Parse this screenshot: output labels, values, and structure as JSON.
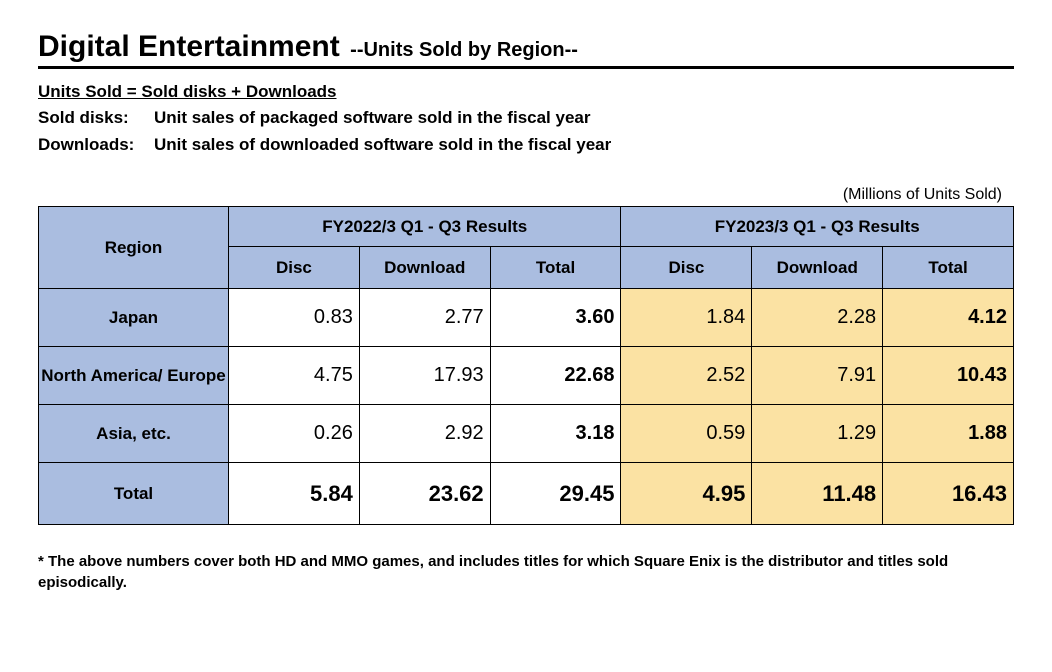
{
  "title": {
    "main": "Digital Entertainment",
    "sub": "--Units Sold by Region--"
  },
  "definitions": {
    "heading": "Units Sold = Sold disks + Downloads",
    "sold_disks_label": "Sold disks:",
    "sold_disks_text": "Unit sales of packaged software sold in the fiscal year",
    "downloads_label": "Downloads:",
    "downloads_text": "Unit sales of downloaded software sold in the fiscal year"
  },
  "unit_note": "(Millions of Units Sold)",
  "table": {
    "region_header": "Region",
    "period_a": "FY2022/3 Q1 - Q3 Results",
    "period_b": "FY2023/3 Q1 - Q3 Results",
    "sub_disc": "Disc",
    "sub_download": "Download",
    "sub_total": "Total",
    "rows": [
      {
        "label": "Japan",
        "a_disc": "0.83",
        "a_dl": "2.77",
        "a_tot": "3.60",
        "b_disc": "1.84",
        "b_dl": "2.28",
        "b_tot": "4.12"
      },
      {
        "label": "North America/ Europe",
        "a_disc": "4.75",
        "a_dl": "17.93",
        "a_tot": "22.68",
        "b_disc": "2.52",
        "b_dl": "7.91",
        "b_tot": "10.43"
      },
      {
        "label": "Asia, etc.",
        "a_disc": "0.26",
        "a_dl": "2.92",
        "a_tot": "3.18",
        "b_disc": "0.59",
        "b_dl": "1.29",
        "b_tot": "1.88"
      }
    ],
    "total": {
      "label": "Total",
      "a_disc": "5.84",
      "a_dl": "23.62",
      "a_tot": "29.45",
      "b_disc": "4.95",
      "b_dl": "11.48",
      "b_tot": "16.43"
    }
  },
  "colors": {
    "header_bg": "#aabde0",
    "highlight_bg": "#fbe2a3",
    "border": "#000000",
    "page_bg": "#ffffff"
  },
  "footnote": "*  The above numbers cover both HD and MMO games, and includes titles for which Square Enix is the distributor and titles sold episodically."
}
